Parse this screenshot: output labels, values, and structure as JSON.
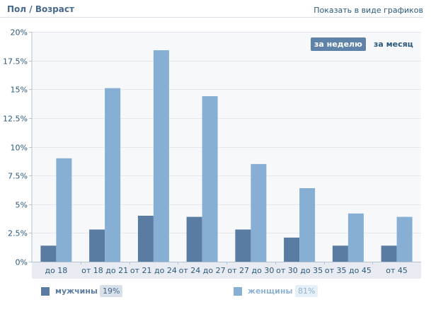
{
  "header": {
    "title": "Пол / Возраст",
    "show_as_graphs": "Показать в виде графиков"
  },
  "period": {
    "week": "за неделю",
    "month": "за месяц",
    "selected": "week"
  },
  "legend": {
    "male": {
      "label": "мужчины",
      "share": "19%"
    },
    "female": {
      "label": "женщины",
      "share": "81%"
    }
  },
  "colors": {
    "male": "#5a7ca3",
    "female": "#87aed3",
    "accent": "#5e82a8"
  },
  "chart_data": {
    "type": "bar",
    "categories": [
      "до 18",
      "от 18 до 21",
      "от 21 до 24",
      "от 24 до 27",
      "от 27 до 30",
      "от 30 до 35",
      "от 35 до 45",
      "от 45"
    ],
    "series": [
      {
        "name": "мужчины",
        "values": [
          1.4,
          2.8,
          4.0,
          3.9,
          2.8,
          2.1,
          1.4,
          1.4
        ]
      },
      {
        "name": "женщины",
        "values": [
          9.0,
          15.1,
          18.4,
          14.4,
          8.5,
          6.4,
          4.2,
          3.9
        ]
      }
    ],
    "ylim": [
      0,
      20
    ],
    "yticks": [
      0,
      2.5,
      5,
      7.5,
      10,
      12.5,
      15,
      17.5,
      20
    ],
    "ytick_labels": [
      "0%",
      "2.5%",
      "5%",
      "7.5%",
      "10%",
      "12.5%",
      "15%",
      "17.5%",
      "20%"
    ],
    "grid": true,
    "legend_position": "bottom",
    "title": "",
    "xlabel": "",
    "ylabel": ""
  }
}
